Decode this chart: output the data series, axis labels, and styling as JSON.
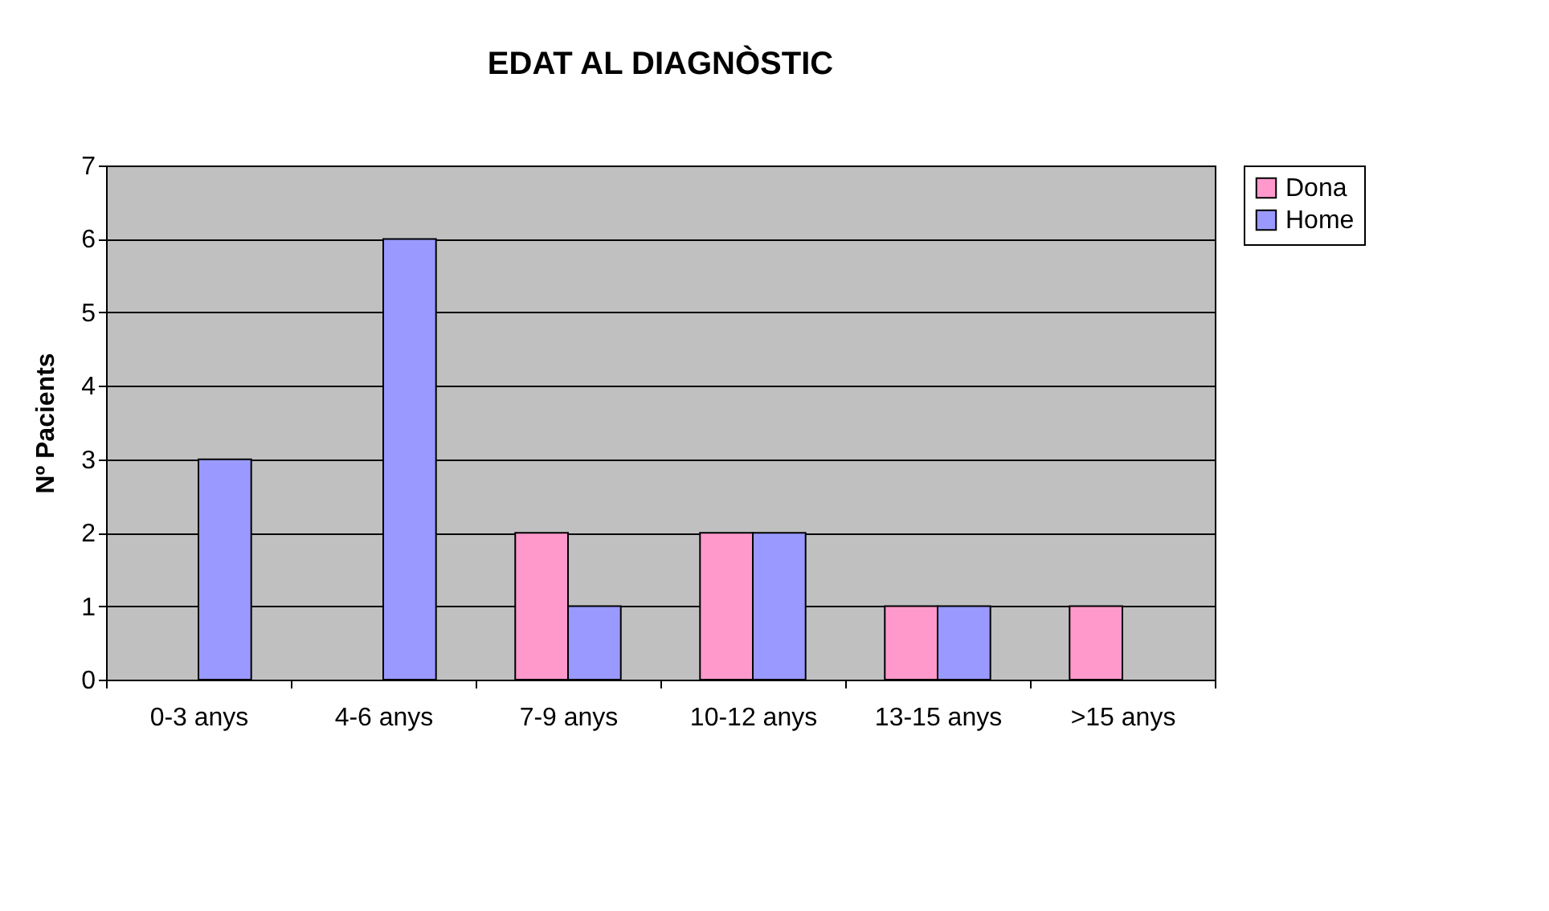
{
  "chart_data": {
    "type": "bar",
    "title": "EDAT AL DIAGNÒSTIC",
    "ylabel": "Nº Pacients",
    "categories": [
      "0-3 anys",
      "4-6 anys",
      "7-9 anys",
      "10-12 anys",
      "13-15 anys",
      ">15 anys"
    ],
    "series": [
      {
        "name": "Dona",
        "color": "#ff99cc",
        "values": [
          0,
          0,
          2,
          2,
          1,
          1
        ]
      },
      {
        "name": "Home",
        "color": "#9999ff",
        "values": [
          3,
          6,
          1,
          2,
          1,
          0
        ]
      }
    ],
    "ylim": [
      0,
      7
    ],
    "yticks": [
      0,
      1,
      2,
      3,
      4,
      5,
      6,
      7
    ],
    "grid": "y",
    "legend": "right"
  }
}
